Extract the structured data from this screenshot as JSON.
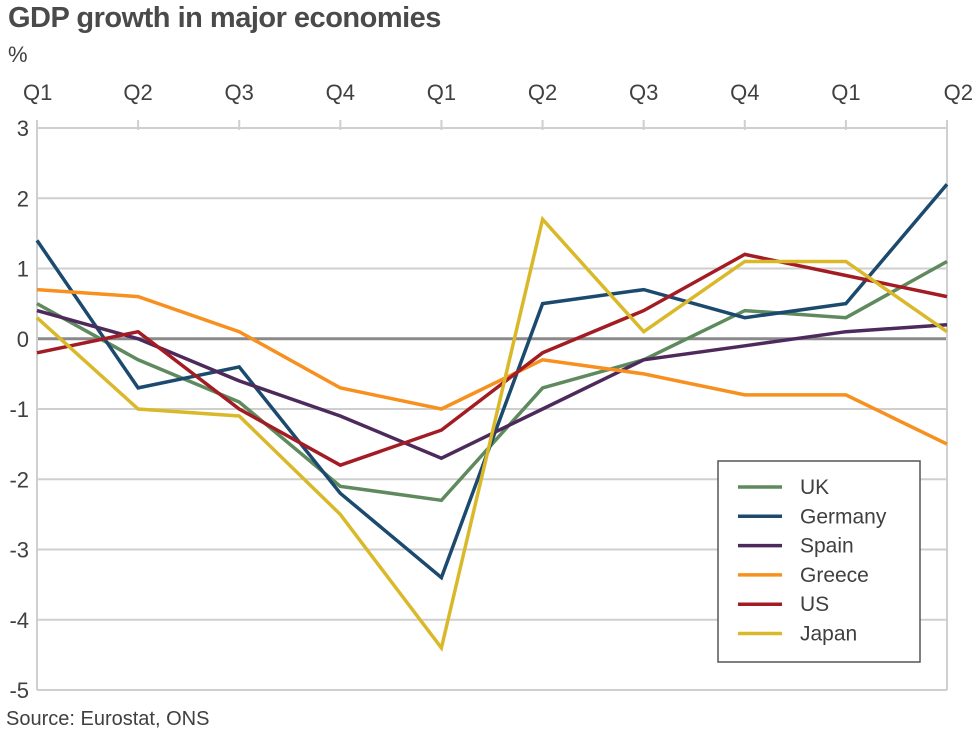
{
  "chart_data": {
    "type": "line",
    "title": "GDP growth in major economies",
    "ylabel": "%",
    "source": "Source: Eurostat, ONS",
    "categories": [
      "Q1",
      "Q2",
      "Q3",
      "Q4",
      "Q1",
      "Q2",
      "Q3",
      "Q4",
      "Q1",
      "Q2"
    ],
    "ylim": [
      -5,
      3
    ],
    "yticks": [
      3,
      2,
      1,
      0,
      -1,
      -2,
      -3,
      -4,
      -5
    ],
    "grid": true,
    "legend_position": "bottom-right",
    "series": [
      {
        "name": "UK",
        "color": "#5e8a5e",
        "values": [
          0.5,
          -0.3,
          -0.9,
          -2.1,
          -2.3,
          -0.7,
          -0.3,
          0.4,
          0.3,
          1.1
        ]
      },
      {
        "name": "Germany",
        "color": "#1c4a6e",
        "values": [
          1.4,
          -0.7,
          -0.4,
          -2.2,
          -3.4,
          0.5,
          0.7,
          0.3,
          0.5,
          2.2
        ]
      },
      {
        "name": "Spain",
        "color": "#4e2a5c",
        "values": [
          0.4,
          0.0,
          -0.6,
          -1.1,
          -1.7,
          -1.0,
          -0.3,
          -0.1,
          0.1,
          0.2
        ]
      },
      {
        "name": "Greece",
        "color": "#f7901e",
        "values": [
          0.7,
          0.6,
          0.1,
          -0.7,
          -1.0,
          -0.3,
          -0.5,
          -0.8,
          -0.8,
          -1.5
        ]
      },
      {
        "name": "US",
        "color": "#a31c24",
        "values": [
          -0.2,
          0.1,
          -1.0,
          -1.8,
          -1.3,
          -0.2,
          0.4,
          1.2,
          0.9,
          0.6
        ]
      },
      {
        "name": "Japan",
        "color": "#d9b92a",
        "values": [
          0.3,
          -1.0,
          -1.1,
          -2.5,
          -4.4,
          1.7,
          0.1,
          1.1,
          1.1,
          0.1
        ]
      }
    ]
  }
}
